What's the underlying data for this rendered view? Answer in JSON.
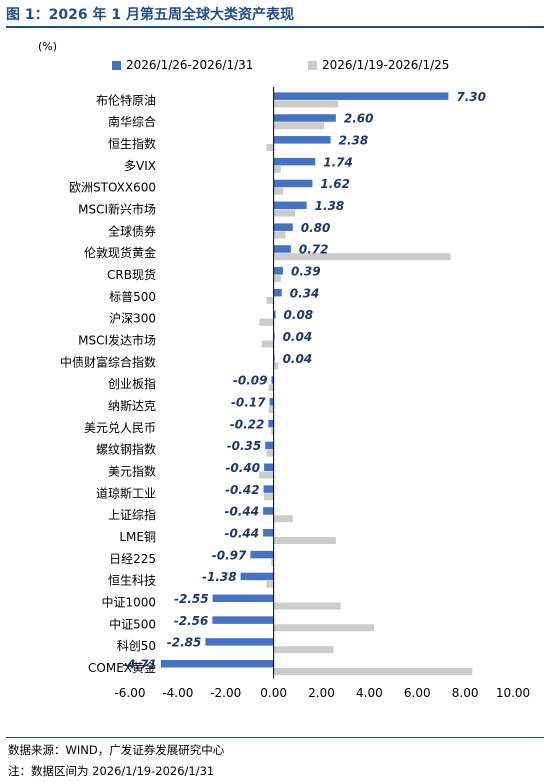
{
  "header": {
    "title": "图 1：2026 年 1 月第五周全球大类资产表现"
  },
  "chart_data": {
    "type": "bar",
    "orientation": "horizontal",
    "unit_label": "(%)",
    "categories": [
      "布伦特原油",
      "南华综合",
      "恒生指数",
      "多VIX",
      "欧洲STOXX600",
      "MSCI新兴市场",
      "全球债券",
      "伦敦现货黄金",
      "CRB现货",
      "标普500",
      "沪深300",
      "MSCI发达市场",
      "中债财富综合指数",
      "创业板指",
      "纳斯达克",
      "美元兑人民币",
      "螺纹钢指数",
      "美元指数",
      "道琼斯工业",
      "上证综指",
      "LME铜",
      "日经225",
      "恒生科技",
      "中证1000",
      "中证500",
      "科创50",
      "COMEX黄金"
    ],
    "series": [
      {
        "name": "2026/1/26-2026/1/31",
        "color": "#4472c4",
        "values": [
          7.3,
          2.6,
          2.38,
          1.74,
          1.62,
          1.38,
          0.8,
          0.72,
          0.39,
          0.34,
          0.08,
          0.04,
          0.04,
          -0.09,
          -0.17,
          -0.22,
          -0.35,
          -0.4,
          -0.42,
          -0.44,
          -0.44,
          -0.97,
          -1.38,
          -2.55,
          -2.56,
          -2.85,
          -4.71
        ]
      },
      {
        "name": "2026/1/19-2026/1/25",
        "color": "#cccccc",
        "values": [
          2.7,
          2.1,
          -0.3,
          0.3,
          0.4,
          0.9,
          0.5,
          7.4,
          0.3,
          -0.3,
          -0.6,
          -0.5,
          0.2,
          -0.2,
          -0.2,
          -0.1,
          -0.3,
          -0.6,
          -0.4,
          0.8,
          2.6,
          -0.1,
          -0.3,
          2.8,
          4.2,
          2.5,
          8.3
        ]
      }
    ],
    "data_labels": [
      "7.30",
      "2.60",
      "2.38",
      "1.74",
      "1.62",
      "1.38",
      "0.80",
      "0.72",
      "0.39",
      "0.34",
      "0.08",
      "0.04",
      "0.04",
      "-0.09",
      "-0.17",
      "-0.22",
      "-0.35",
      "-0.40",
      "-0.42",
      "-0.44",
      "-0.44",
      "-0.97",
      "-1.38",
      "-2.55",
      "-2.56",
      "-2.85",
      "-4.71"
    ],
    "xlim": [
      -6,
      10
    ],
    "x_ticks": [
      "-6.00",
      "-4.00",
      "-2.00",
      "0.00",
      "2.00",
      "4.00",
      "6.00",
      "8.00",
      "10.00"
    ],
    "label_color": "#1f3864",
    "grid": false,
    "legend_position": "top"
  },
  "footer": {
    "source": "数据来源：WIND，广发证券发展研究中心",
    "note": "注：数据区间为 2026/1/19-2026/1/31"
  }
}
